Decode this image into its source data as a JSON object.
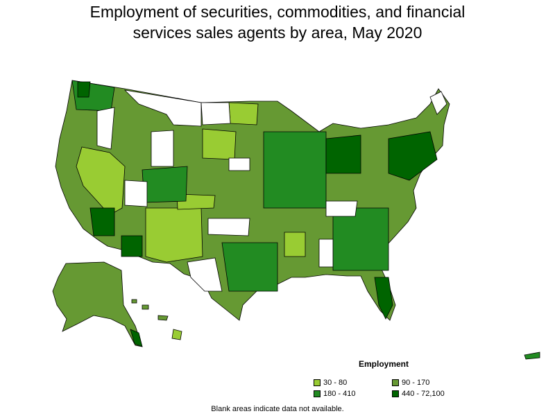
{
  "title": {
    "line1": "Employment of securities, commodities, and financial",
    "line2": "services sales agents by area, May 2020"
  },
  "legend": {
    "title": "Employment",
    "items": [
      {
        "label": "30 - 80",
        "color": "#99cc33"
      },
      {
        "label": "90 - 170",
        "color": "#669933"
      },
      {
        "label": "180 - 410",
        "color": "#228b22"
      },
      {
        "label": "440 - 72,100",
        "color": "#006400"
      }
    ]
  },
  "note": "Blank areas indicate data not available.",
  "colors": {
    "blank": "#ffffff",
    "border": "#000000"
  }
}
